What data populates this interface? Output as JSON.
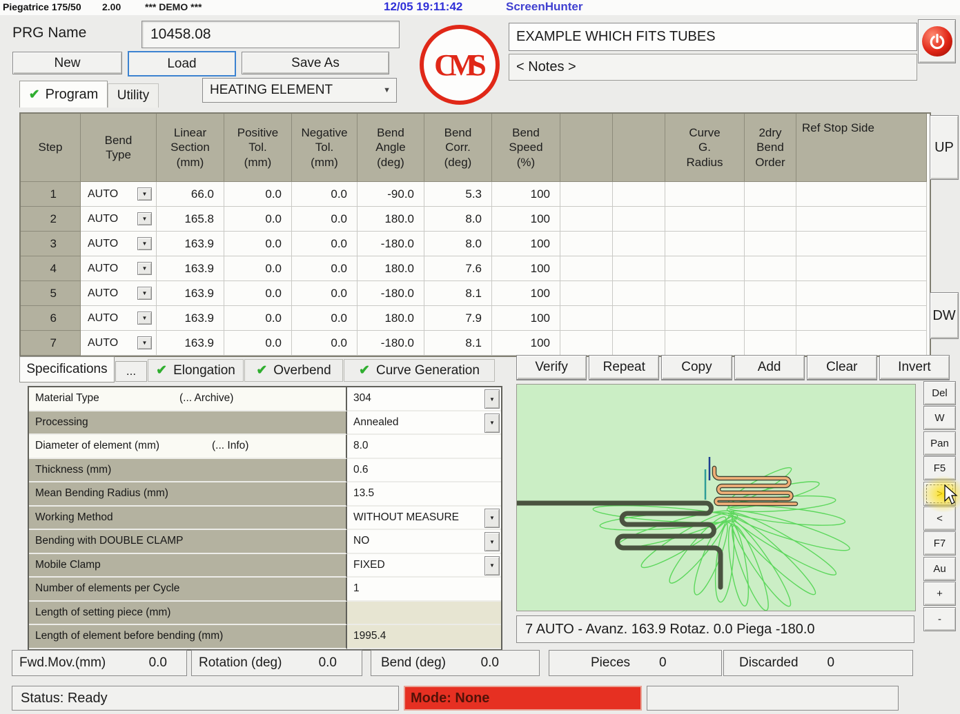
{
  "titlebar": {
    "app": "Piegatrice 175/50",
    "version": "2.00",
    "demo": "*** DEMO ***",
    "datetime": "12/05  19:11:42",
    "overlay": "ScreenHunter"
  },
  "header": {
    "prg_label": "PRG Name",
    "prg_value": "10458.08",
    "new_label": "New",
    "load_label": "Load",
    "save_as_label": "Save As",
    "tab_program": "Program",
    "tab_utility": "Utility",
    "program_type": "HEATING ELEMENT",
    "description": "EXAMPLE WHICH FITS TUBES",
    "notes": "< Notes >",
    "logo_text": "CMS"
  },
  "bend_table": {
    "headers": [
      "Step",
      "Bend\nType",
      "Linear\nSection\n(mm)",
      "Positive\nTol.\n(mm)",
      "Negative\nTol.\n(mm)",
      "Bend\nAngle\n(deg)",
      "Bend\nCorr.\n(deg)",
      "Bend\nSpeed\n(%)",
      "",
      "",
      "Curve\nG.\nRadius",
      "2dry\nBend\nOrder",
      "Ref Stop Side"
    ],
    "up_label": "UP",
    "dw_label": "DW",
    "rows": [
      {
        "step": "1",
        "type": "AUTO",
        "linear": "66.0",
        "pos": "0.0",
        "neg": "0.0",
        "angle": "-90.0",
        "corr": "5.3",
        "speed": "100"
      },
      {
        "step": "2",
        "type": "AUTO",
        "linear": "165.8",
        "pos": "0.0",
        "neg": "0.0",
        "angle": "180.0",
        "corr": "8.0",
        "speed": "100"
      },
      {
        "step": "3",
        "type": "AUTO",
        "linear": "163.9",
        "pos": "0.0",
        "neg": "0.0",
        "angle": "-180.0",
        "corr": "8.0",
        "speed": "100"
      },
      {
        "step": "4",
        "type": "AUTO",
        "linear": "163.9",
        "pos": "0.0",
        "neg": "0.0",
        "angle": "180.0",
        "corr": "7.6",
        "speed": "100"
      },
      {
        "step": "5",
        "type": "AUTO",
        "linear": "163.9",
        "pos": "0.0",
        "neg": "0.0",
        "angle": "-180.0",
        "corr": "8.1",
        "speed": "100"
      },
      {
        "step": "6",
        "type": "AUTO",
        "linear": "163.9",
        "pos": "0.0",
        "neg": "0.0",
        "angle": "180.0",
        "corr": "7.9",
        "speed": "100"
      },
      {
        "step": "7",
        "type": "AUTO",
        "linear": "163.9",
        "pos": "0.0",
        "neg": "0.0",
        "angle": "-180.0",
        "corr": "8.1",
        "speed": "100"
      }
    ]
  },
  "spec": {
    "tabs": {
      "specifications": "Specifications",
      "dots": "...",
      "elongation": "Elongation",
      "overbend": "Overbend",
      "curve_generation": "Curve Generation"
    },
    "rows": [
      {
        "label": "Material Type",
        "link": "(... Archive)",
        "value": "304",
        "dropdown": true,
        "light": true,
        "beige": false
      },
      {
        "label": "Processing",
        "link": "",
        "value": "Annealed",
        "dropdown": true,
        "light": false,
        "beige": false
      },
      {
        "label": "Diameter of element (mm)",
        "link": "(... Info)",
        "value": "8.0",
        "dropdown": false,
        "light": true,
        "beige": false
      },
      {
        "label": "Thickness (mm)",
        "link": "",
        "value": "0.6",
        "dropdown": false,
        "light": false,
        "beige": false
      },
      {
        "label": "Mean Bending Radius (mm)",
        "link": "",
        "value": "13.5",
        "dropdown": false,
        "light": false,
        "beige": false
      },
      {
        "label": "Working Method",
        "link": "",
        "value": "WITHOUT MEASURE",
        "dropdown": true,
        "light": false,
        "beige": false
      },
      {
        "label": "Bending with DOUBLE CLAMP",
        "link": "",
        "value": "NO",
        "dropdown": true,
        "light": false,
        "beige": false
      },
      {
        "label": "Mobile Clamp",
        "link": "",
        "value": "FIXED",
        "dropdown": true,
        "light": false,
        "beige": false
      },
      {
        "label": "Number of elements per Cycle",
        "link": "",
        "value": "1",
        "dropdown": false,
        "light": false,
        "beige": false
      },
      {
        "label": "Length of setting piece (mm)",
        "link": "",
        "value": "",
        "dropdown": false,
        "light": false,
        "beige": true
      },
      {
        "label": "Length of element before bending (mm)",
        "link": "",
        "value": "1995.4",
        "dropdown": false,
        "light": false,
        "beige": true
      }
    ]
  },
  "actions": [
    "Verify",
    "Repeat",
    "Copy",
    "Add",
    "Clear",
    "Invert"
  ],
  "side_buttons": [
    "Del",
    "W",
    "Pan",
    "F5",
    ">",
    "<",
    "F7",
    "Au",
    "+",
    "-"
  ],
  "graphics": {
    "status": "7 AUTO - Avanz. 163.9 Rotaz. 0.0 Piega -180.0"
  },
  "footer": {
    "fwd_label": "Fwd.Mov.(mm)",
    "fwd_value": "0.0",
    "rot_label": "Rotation (deg)",
    "rot_value": "0.0",
    "bend_label": "Bend (deg)",
    "bend_value": "0.0",
    "pieces_label": "Pieces",
    "pieces_value": "0",
    "discarded_label": "Discarded",
    "discarded_value": "0",
    "status": "Status: Ready",
    "mode": "Mode: None"
  },
  "colors": {
    "accent_blue": "#3b82d0",
    "overlay_blue": "#3030d8",
    "mode_red": "#e63022",
    "canvas_green": "#cbeec5",
    "tube_dark": "#4a5340",
    "tube_orange": "#efaf78",
    "loop_green": "#57d657",
    "logo_red": "#e02818",
    "check_green": "#2fae2f",
    "header_olive": "#b3b19f"
  }
}
